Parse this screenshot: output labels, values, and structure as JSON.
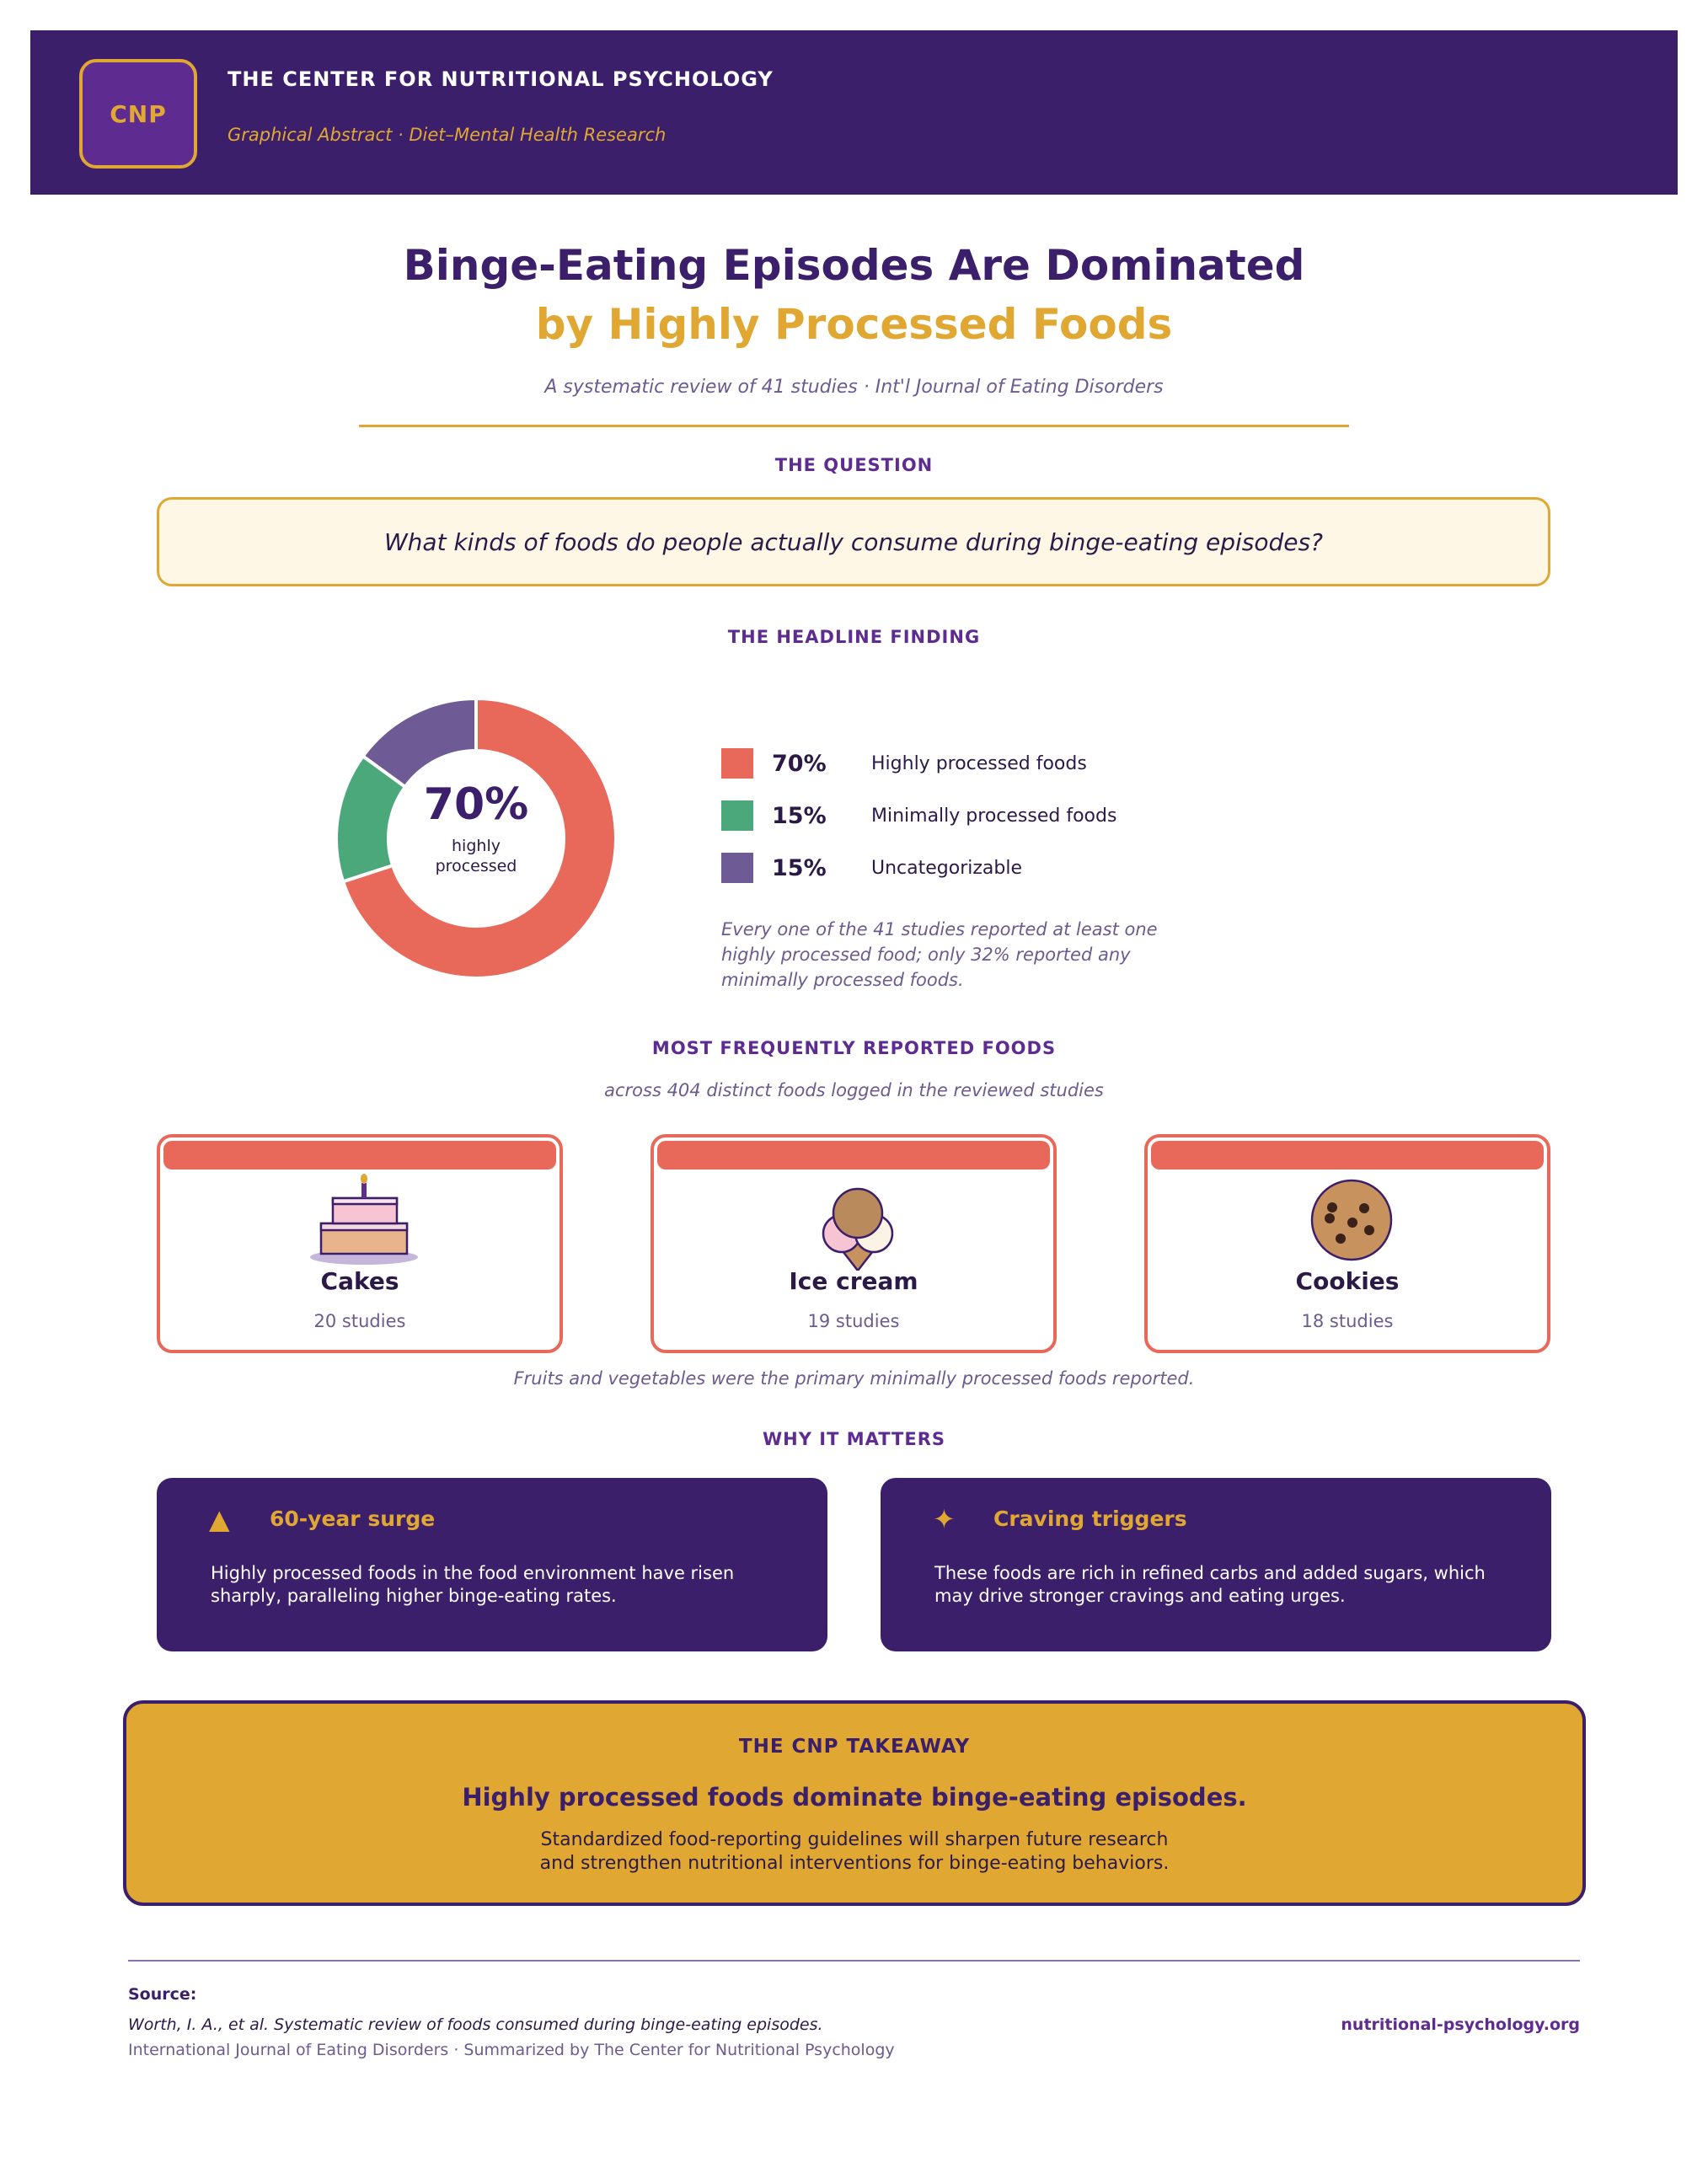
{
  "header": {
    "logo_text": "CNP",
    "org_name": "THE CENTER FOR NUTRITIONAL PSYCHOLOGY",
    "subtitle": "Graphical Abstract  ·  Diet–Mental Health Research"
  },
  "title": {
    "line1": "Binge-Eating Episodes Are Dominated",
    "line2": "by Highly Processed Foods",
    "subtitle": "A systematic review of 41 studies  ·  Int'l Journal of Eating Disorders"
  },
  "question": {
    "label": "THE QUESTION",
    "text": "What kinds of foods do people actually consume during binge-eating episodes?"
  },
  "finding": {
    "label": "THE HEADLINE FINDING",
    "center_pct": "70%",
    "center_label_1": "highly",
    "center_label_2": "processed",
    "note": "Every one of the 41 studies reported at least one highly processed food; only 32% reported any minimally processed foods."
  },
  "chart_data": {
    "type": "pie",
    "donut": true,
    "categories": [
      "Highly processed foods",
      "Minimally processed foods",
      "Uncategorizable"
    ],
    "values": [
      70,
      15,
      15
    ],
    "labels": [
      "70%",
      "15%",
      "15%"
    ],
    "colors": [
      "#e8695a",
      "#4aa87a",
      "#6e5b96"
    ]
  },
  "foods": {
    "label": "MOST FREQUENTLY REPORTED FOODS",
    "subtitle": "across 404 distinct foods logged in the reviewed studies",
    "items": [
      {
        "name": "Cakes",
        "count": "20 studies",
        "icon": "cake-icon"
      },
      {
        "name": "Ice cream",
        "count": "19 studies",
        "icon": "ice-cream-icon"
      },
      {
        "name": "Cookies",
        "count": "18 studies",
        "icon": "cookie-icon"
      }
    ],
    "note": "Fruits and vegetables were the primary minimally processed foods reported."
  },
  "why": {
    "label": "WHY IT MATTERS",
    "items": [
      {
        "icon_glyph": "▲",
        "heading": "60-year surge",
        "body": "Highly processed foods in the food environment have risen sharply, paralleling higher binge-eating rates."
      },
      {
        "icon_glyph": "✦",
        "heading": "Craving triggers",
        "body": "These foods are rich in refined carbs and added sugars, which may drive stronger cravings and eating urges."
      }
    ]
  },
  "takeaway": {
    "label": "THE CNP TAKEAWAY",
    "headline": "Highly processed foods dominate binge-eating episodes.",
    "body_line1": "Standardized food-reporting guidelines will sharpen future research",
    "body_line2": "and strengthen nutritional interventions for binge-eating behaviors."
  },
  "footer": {
    "source_label": "Source:",
    "citation": "Worth, I. A., et al. Systematic review of foods consumed during binge-eating episodes.",
    "meta": "International Journal of Eating Disorders  ·  Summarized by The Center for Nutritional Psychology",
    "url": "nutritional-psychology.org"
  }
}
